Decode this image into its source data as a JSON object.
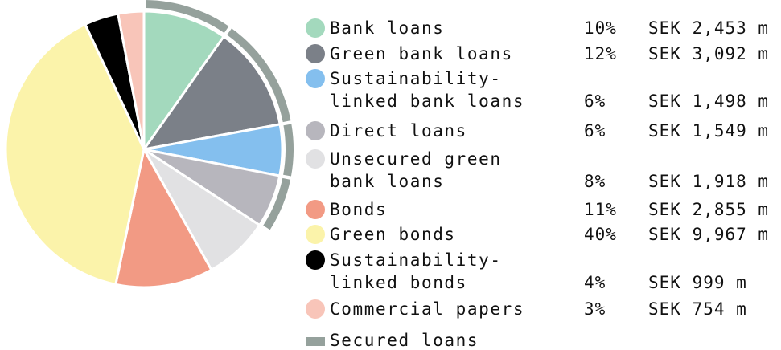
{
  "chart_data": {
    "type": "pie",
    "title": "",
    "legend_position": "right",
    "start_angle": "12 o'clock, clockwise",
    "slices": [
      {
        "label": [
          "Bank loans"
        ],
        "percent": 10,
        "percent_text": "10%",
        "amount_text": "SEK 2,453 m",
        "amount": 2453,
        "color": "#a3d9bd",
        "secured": true
      },
      {
        "label": [
          "Green bank loans"
        ],
        "percent": 12,
        "percent_text": "12%",
        "amount_text": "SEK 3,092 m",
        "amount": 3092,
        "color": "#7b8088",
        "secured": true
      },
      {
        "label": [
          "Sustainability-",
          "linked bank loans"
        ],
        "percent": 6,
        "percent_text": "6%",
        "amount_text": "SEK 1,498 m",
        "amount": 1498,
        "color": "#84bfee",
        "secured": true
      },
      {
        "label": [
          "Direct loans"
        ],
        "percent": 6,
        "percent_text": "6%",
        "amount_text": "SEK 1,549 m",
        "amount": 1549,
        "color": "#b7b6bd",
        "secured": true
      },
      {
        "label": [
          "Unsecured green",
          "bank loans"
        ],
        "percent": 8,
        "percent_text": "8%",
        "amount_text": "SEK 1,918 m",
        "amount": 1918,
        "color": "#e1e1e3",
        "secured": false
      },
      {
        "label": [
          "Bonds"
        ],
        "percent": 11,
        "percent_text": "11%",
        "amount_text": "SEK 2,855 m",
        "amount": 2855,
        "color": "#f29a84",
        "secured": false
      },
      {
        "label": [
          "Green bonds"
        ],
        "percent": 40,
        "percent_text": "40%",
        "amount_text": "SEK 9,967 m",
        "amount": 9967,
        "color": "#fbf3aa",
        "secured": false
      },
      {
        "label": [
          "Sustainability-",
          "linked bonds"
        ],
        "percent": 4,
        "percent_text": "4%",
        "amount_text": "SEK 999 m",
        "amount": 999,
        "color": "#000000",
        "secured": false
      },
      {
        "label": [
          "Commercial papers"
        ],
        "percent": 3,
        "percent_text": "3%",
        "amount_text": "SEK 754 m",
        "amount": 754,
        "color": "#f8c5b9",
        "secured": false
      }
    ],
    "secured_loans": {
      "label": "Secured loans",
      "color": "#95a19c"
    }
  }
}
